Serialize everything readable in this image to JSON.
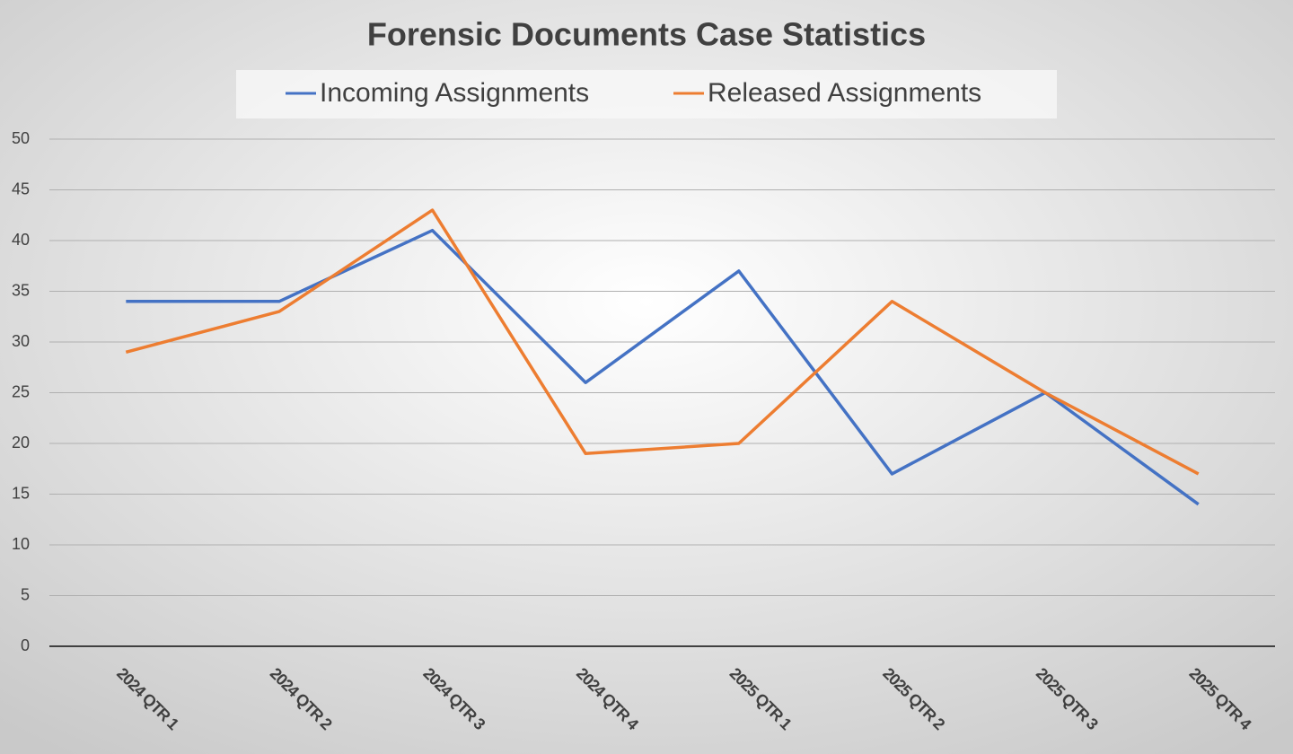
{
  "chart_data": {
    "type": "line",
    "title": "Forensic Documents Case Statistics",
    "categories": [
      "2024 QTR 1",
      "2024 QTR 2",
      "2024 QTR 3",
      "2024 QTR 4",
      "2025 QTR 1",
      "2025 QTR 2",
      "2025 QTR 3",
      "2025 QTR 4"
    ],
    "series": [
      {
        "name": "Incoming Assignments",
        "color": "#4472c4",
        "values": [
          34,
          34,
          41,
          26,
          37,
          17,
          25,
          14
        ]
      },
      {
        "name": "Released Assignments",
        "color": "#ed7d31",
        "values": [
          29,
          33,
          43,
          19,
          20,
          34,
          25,
          17
        ]
      }
    ],
    "ylim": [
      0,
      50
    ],
    "yticks": [
      0,
      5,
      10,
      15,
      20,
      25,
      30,
      35,
      40,
      45,
      50
    ],
    "grid": true,
    "legend": "top"
  }
}
